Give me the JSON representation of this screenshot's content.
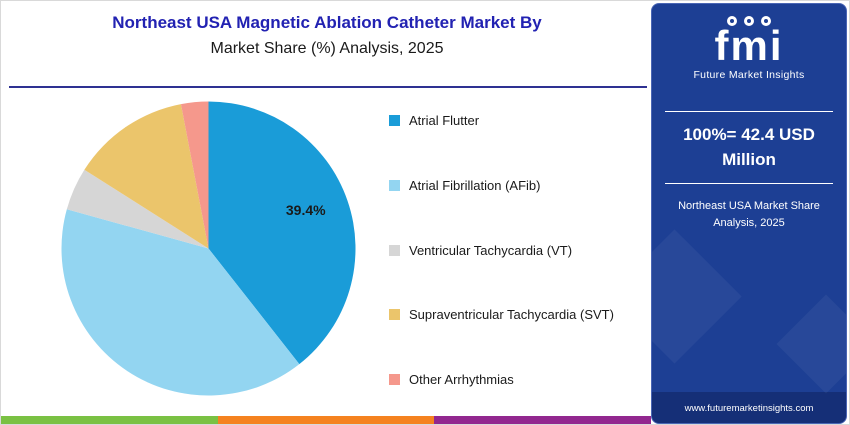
{
  "header": {
    "title_line1": "Northeast USA Magnetic Ablation Catheter Market By",
    "title_line2": "Market Share (%) Analysis, 2025"
  },
  "chart_data": {
    "type": "pie",
    "title": "Northeast USA Magnetic Ablation Catheter Market By Market Share (%) Analysis, 2025",
    "unit": "% market share",
    "start_angle_deg": -90,
    "direction": "clockwise",
    "legend_position": "right",
    "slices": [
      {
        "label": "Atrial Flutter",
        "value": 39.4,
        "color": "#1a9cd8",
        "data_label": "39.4%"
      },
      {
        "label": "Atrial Fibrillation (AFib)",
        "value": 39.9,
        "color": "#93d5f1"
      },
      {
        "label": "Ventricular Tachycardia (VT)",
        "value": 4.7,
        "color": "#d6d6d6"
      },
      {
        "label": "Supraventricular Tachycardia (SVT)",
        "value": 13.0,
        "color": "#ebc56b"
      },
      {
        "label": "Other Arrhythmias",
        "value": 3.0,
        "color": "#f5988c"
      }
    ]
  },
  "sidebar": {
    "logo_text": "fmi",
    "brand_name": "Future Market Insights",
    "highlight": "100%= 42.4 USD Million",
    "subtitle": "Northeast USA Market Share Analysis, 2025",
    "website": "www.futuremarketinsights.com"
  },
  "footer": {
    "segments": [
      "#7ac143",
      "#f58220",
      "#92278f"
    ]
  },
  "colors": {
    "title_blue": "#2222b2",
    "header_rule": "#2e3192",
    "sidebar_bg": "#1d3f94",
    "text_dark": "#1a1a1a"
  }
}
